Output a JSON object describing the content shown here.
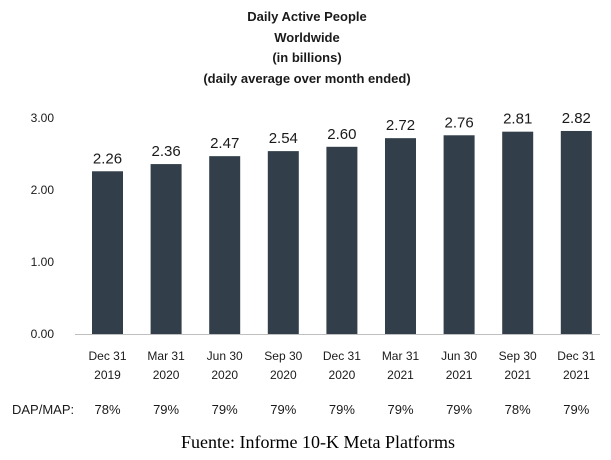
{
  "chart_data": {
    "type": "bar",
    "title_lines": [
      "Daily Active People",
      "Worldwide",
      "(in billions)",
      "(daily average over month ended)"
    ],
    "categories": [
      [
        "Dec 31",
        "2019"
      ],
      [
        "Mar 31",
        "2020"
      ],
      [
        "Jun 30",
        "2020"
      ],
      [
        "Sep 30",
        "2020"
      ],
      [
        "Dec 31",
        "2020"
      ],
      [
        "Mar 31",
        "2021"
      ],
      [
        "Jun 30",
        "2021"
      ],
      [
        "Sep 30",
        "2021"
      ],
      [
        "Dec 31",
        "2021"
      ]
    ],
    "values": [
      2.26,
      2.36,
      2.47,
      2.54,
      2.6,
      2.72,
      2.76,
      2.81,
      2.82
    ],
    "data_labels": [
      "2.26",
      "2.36",
      "2.47",
      "2.54",
      "2.60",
      "2.72",
      "2.76",
      "2.81",
      "2.82"
    ],
    "yticks": [
      "0.00",
      "1.00",
      "2.00",
      "3.00"
    ],
    "ylim": [
      0,
      3
    ],
    "bar_color": "#323f4a",
    "grid": false,
    "ratio_row": {
      "label": "DAP/MAP:",
      "values": [
        "78%",
        "79%",
        "79%",
        "79%",
        "79%",
        "79%",
        "79%",
        "78%",
        "79%"
      ]
    }
  },
  "source_note": "Fuente: Informe 10-K Meta Platforms"
}
